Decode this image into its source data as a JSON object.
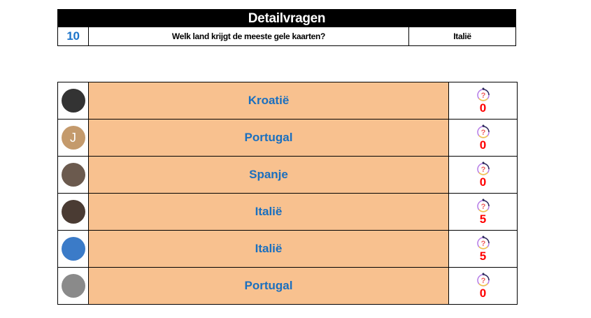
{
  "header": {
    "title": "Detailvragen",
    "number": "10",
    "question": "Welk land krijgt de meeste gele kaarten?",
    "answer": "Italië"
  },
  "rows": [
    {
      "answer": "Kroatië",
      "points": "0",
      "avatar_color": "#333333",
      "avatar_letter": ""
    },
    {
      "answer": "Portugal",
      "points": "0",
      "avatar_color": "#c49a6c",
      "avatar_letter": "J"
    },
    {
      "answer": "Spanje",
      "points": "0",
      "avatar_color": "#6b5a4e",
      "avatar_letter": ""
    },
    {
      "answer": "Italië",
      "points": "5",
      "avatar_color": "#4a3b33",
      "avatar_letter": ""
    },
    {
      "answer": "Italië",
      "points": "5",
      "avatar_color": "#3b7bc8",
      "avatar_letter": ""
    },
    {
      "answer": "Portugal",
      "points": "0",
      "avatar_color": "#8a8a8a",
      "avatar_letter": ""
    }
  ],
  "colors": {
    "answer_bg": "#f8c18f",
    "answer_text": "#1a6fbf",
    "points": "#ff0000"
  }
}
